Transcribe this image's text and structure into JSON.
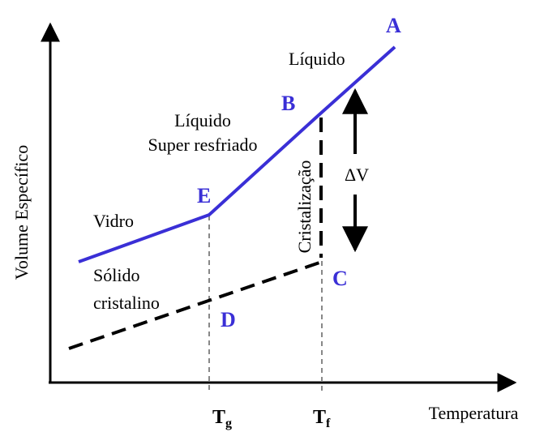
{
  "labels": {
    "A": "A",
    "liquid_top": "Líquido",
    "B": "B",
    "supercooled_1": "Líquido",
    "supercooled_2": "Super resfriado",
    "crystallization": "Cristalização",
    "delta_v": "ΔV",
    "E": "E",
    "glass": "Vidro",
    "solid_1": "Sólido",
    "solid_2": "cristalino",
    "D": "D",
    "C": "C"
  },
  "axes": {
    "y_label": "Volume Específico",
    "x_label": "Temperatura",
    "tg_main": "T",
    "tg_sub": "g",
    "tf_main": "T",
    "tf_sub": "f"
  }
}
